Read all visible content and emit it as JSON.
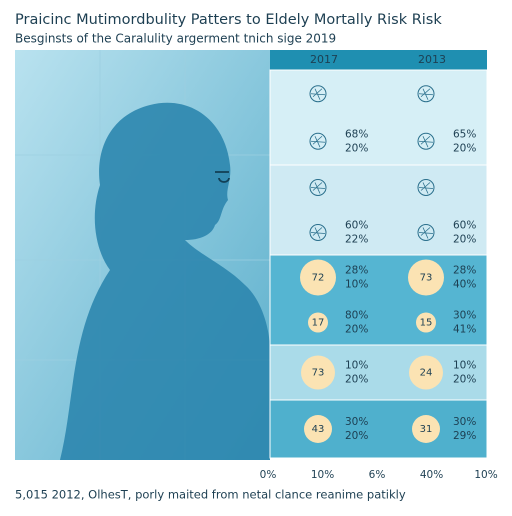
{
  "header": {
    "title": "Praicinc Mutimordbulity Patters to Eldely Mortally Risk Risk",
    "subtitle": "Besginsts of the Caralulity argerment tnich sige 2019"
  },
  "columns": [
    "2017",
    "2013"
  ],
  "rows": [
    {
      "cells": [
        {
          "items": [
            {},
            {
              "lines": [
                "68%",
                "20%"
              ]
            }
          ]
        },
        {
          "items": [
            {},
            {
              "lines": [
                "65%",
                "20%"
              ]
            }
          ]
        }
      ]
    },
    {
      "cells": [
        {
          "items": [
            {},
            {
              "lines": [
                "60%",
                "22%"
              ]
            }
          ]
        },
        {
          "items": [
            {},
            {
              "lines": [
                "60%",
                "20%"
              ]
            }
          ]
        }
      ]
    },
    {
      "cells": [
        {
          "items": [
            {
              "badge": "72",
              "lines": [
                "28%",
                "10%"
              ]
            },
            {
              "badge": "17",
              "lines": [
                "80%",
                "20%"
              ]
            }
          ]
        },
        {
          "items": [
            {
              "badge": "73",
              "lines": [
                "28%",
                "40%"
              ]
            },
            {
              "badge": "15",
              "lines": [
                "30%",
                "41%"
              ]
            }
          ]
        }
      ]
    },
    {
      "cells": [
        {
          "items": [
            {
              "badge": "73",
              "lines": [
                "10%",
                "20%"
              ]
            }
          ]
        },
        {
          "items": [
            {
              "badge": "24",
              "lines": [
                "10%",
                "20%"
              ]
            }
          ]
        }
      ]
    },
    {
      "cells": [
        {
          "items": [
            {
              "badge": "43",
              "lines": [
                "30%",
                "20%"
              ]
            }
          ]
        },
        {
          "items": [
            {
              "badge": "31",
              "lines": [
                "30%",
                "29%"
              ]
            }
          ]
        }
      ]
    }
  ],
  "axis_labels": [
    "0%",
    "10%",
    "6%",
    "40%",
    "10%"
  ],
  "footer": "5,015 2012, OlhesT, porly maited from netal clance reanime patikly"
}
